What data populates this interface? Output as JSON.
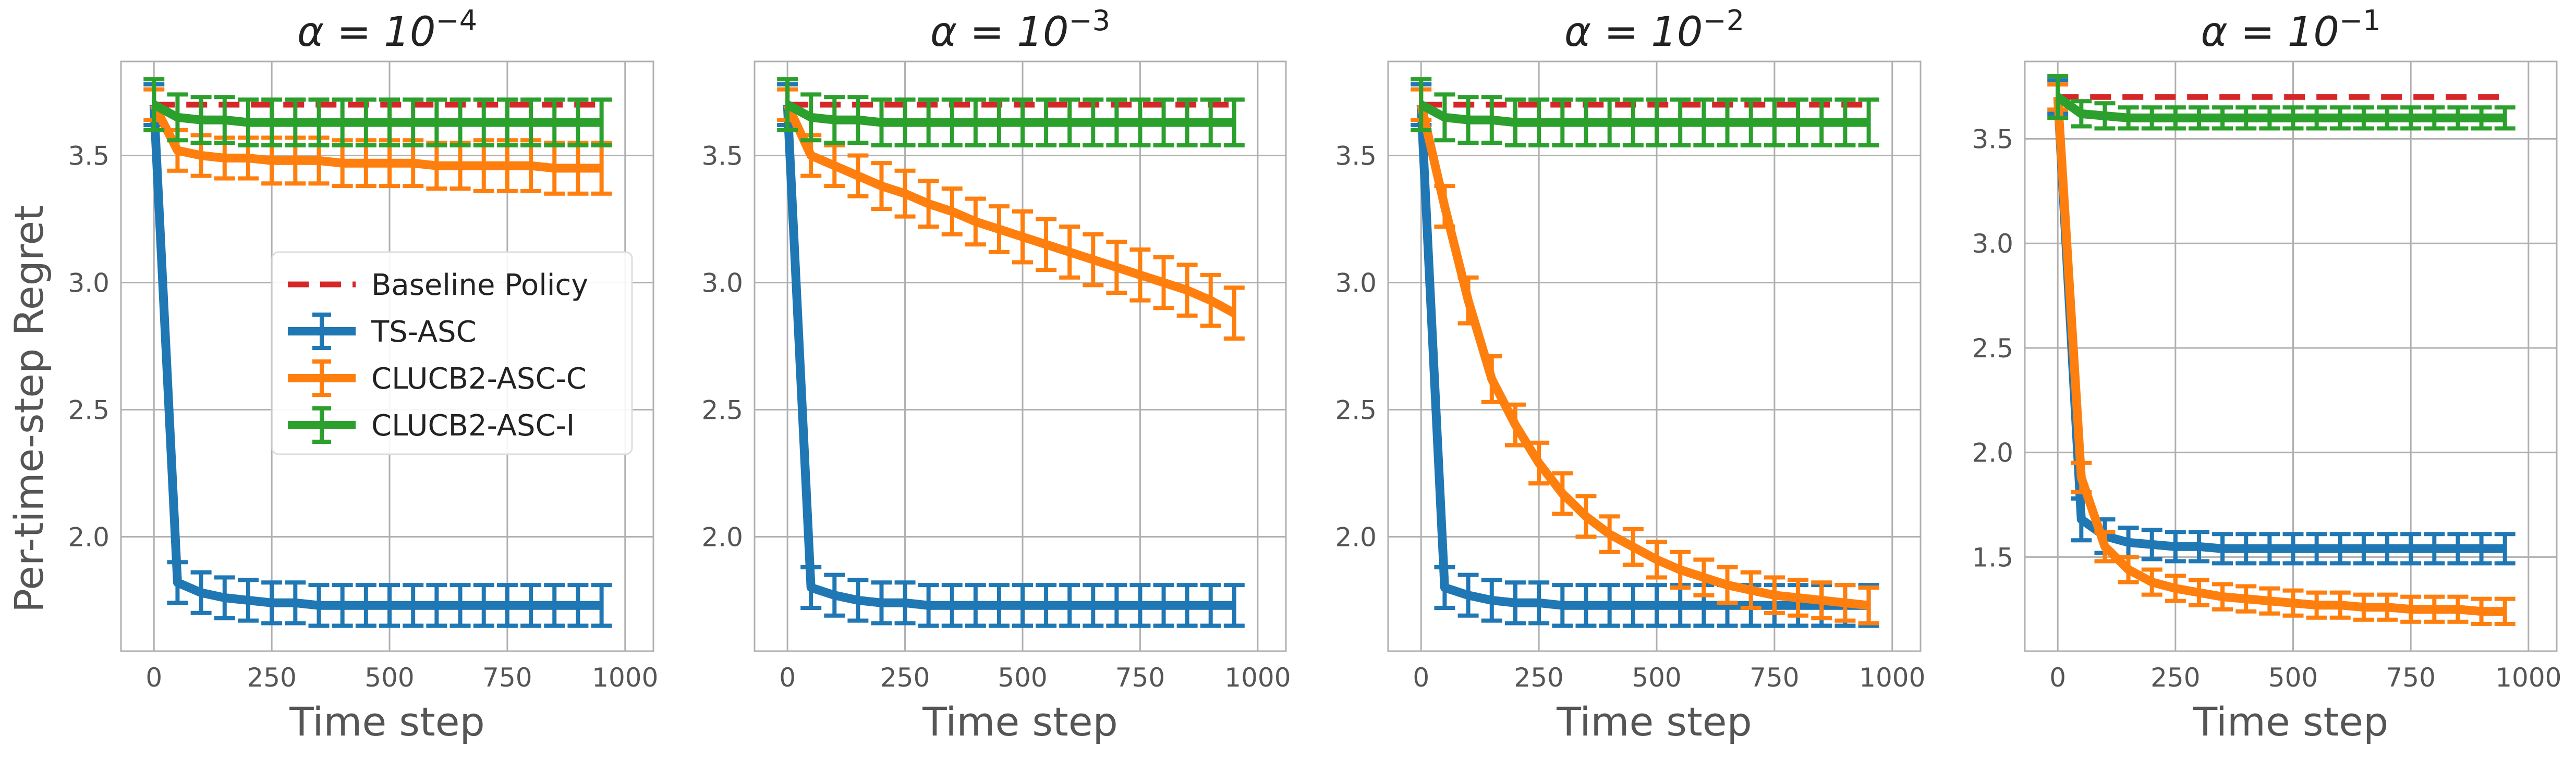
{
  "figure": {
    "ylabel": "Per-time-step Regret",
    "xlabel": "Time step"
  },
  "legend": {
    "location": "center-right of first panel",
    "entries": [
      {
        "name": "Baseline Policy",
        "color": "#d62728",
        "style": "dashed"
      },
      {
        "name": "TS-ASC",
        "color": "#1f77b4",
        "style": "errorbar"
      },
      {
        "name": "CLUCB2-ASC-C",
        "color": "#ff7f0e",
        "style": "errorbar"
      },
      {
        "name": "CLUCB2-ASC-I",
        "color": "#2ca02c",
        "style": "errorbar"
      }
    ]
  },
  "chart_data": [
    {
      "type": "line",
      "title": "α = 10",
      "title_exp": "−4",
      "xlabel": "Time step",
      "ylabel": "Per-time-step Regret",
      "xlim": [
        -70,
        1060
      ],
      "ylim": [
        1.55,
        3.87
      ],
      "xticks": [
        0,
        250,
        500,
        750,
        1000
      ],
      "xtick_labels": [
        "0",
        "250",
        "500",
        "750",
        "1000"
      ],
      "yticks": [
        2.0,
        2.5,
        3.0,
        3.5
      ],
      "ytick_labels": [
        "2.0",
        "2.5",
        "3.0",
        "3.5"
      ],
      "grid": true,
      "baseline": {
        "name": "Baseline Policy",
        "value": 3.7,
        "x": [
          0,
          960
        ]
      },
      "x": [
        0,
        50,
        100,
        150,
        200,
        250,
        300,
        350,
        400,
        450,
        500,
        550,
        600,
        650,
        700,
        750,
        800,
        850,
        900,
        950
      ],
      "series": [
        {
          "name": "TS-ASC",
          "color": "#1f77b4",
          "values": [
            3.7,
            1.82,
            1.78,
            1.76,
            1.75,
            1.74,
            1.74,
            1.73,
            1.73,
            1.73,
            1.73,
            1.73,
            1.73,
            1.73,
            1.73,
            1.73,
            1.73,
            1.73,
            1.73,
            1.73
          ],
          "err": [
            0.08,
            0.08,
            0.08,
            0.08,
            0.08,
            0.08,
            0.08,
            0.08,
            0.08,
            0.08,
            0.08,
            0.08,
            0.08,
            0.08,
            0.08,
            0.08,
            0.08,
            0.08,
            0.08,
            0.08
          ]
        },
        {
          "name": "CLUCB2-ASC-C",
          "color": "#ff7f0e",
          "values": [
            3.7,
            3.52,
            3.5,
            3.49,
            3.49,
            3.48,
            3.48,
            3.48,
            3.47,
            3.47,
            3.47,
            3.47,
            3.46,
            3.46,
            3.46,
            3.46,
            3.46,
            3.45,
            3.45,
            3.45
          ],
          "err": [
            0.06,
            0.08,
            0.08,
            0.08,
            0.08,
            0.09,
            0.09,
            0.09,
            0.09,
            0.09,
            0.09,
            0.09,
            0.09,
            0.09,
            0.1,
            0.1,
            0.1,
            0.1,
            0.1,
            0.1
          ]
        },
        {
          "name": "CLUCB2-ASC-I",
          "color": "#2ca02c",
          "values": [
            3.7,
            3.65,
            3.64,
            3.64,
            3.63,
            3.63,
            3.63,
            3.63,
            3.63,
            3.63,
            3.63,
            3.63,
            3.63,
            3.63,
            3.63,
            3.63,
            3.63,
            3.63,
            3.63,
            3.63
          ],
          "err": [
            0.1,
            0.09,
            0.09,
            0.09,
            0.09,
            0.09,
            0.09,
            0.09,
            0.09,
            0.09,
            0.09,
            0.09,
            0.09,
            0.09,
            0.09,
            0.09,
            0.09,
            0.09,
            0.09,
            0.09
          ]
        }
      ]
    },
    {
      "type": "line",
      "title": "α = 10",
      "title_exp": "−3",
      "xlabel": "Time step",
      "ylabel": "",
      "xlim": [
        -70,
        1060
      ],
      "ylim": [
        1.55,
        3.87
      ],
      "xticks": [
        0,
        250,
        500,
        750,
        1000
      ],
      "xtick_labels": [
        "0",
        "250",
        "500",
        "750",
        "1000"
      ],
      "yticks": [
        2.0,
        2.5,
        3.0,
        3.5
      ],
      "ytick_labels": [
        "2.0",
        "2.5",
        "3.0",
        "3.5"
      ],
      "grid": true,
      "baseline": {
        "name": "Baseline Policy",
        "value": 3.7,
        "x": [
          0,
          960
        ]
      },
      "x": [
        0,
        50,
        100,
        150,
        200,
        250,
        300,
        350,
        400,
        450,
        500,
        550,
        600,
        650,
        700,
        750,
        800,
        850,
        900,
        950
      ],
      "series": [
        {
          "name": "TS-ASC",
          "color": "#1f77b4",
          "values": [
            3.7,
            1.8,
            1.77,
            1.75,
            1.74,
            1.74,
            1.73,
            1.73,
            1.73,
            1.73,
            1.73,
            1.73,
            1.73,
            1.73,
            1.73,
            1.73,
            1.73,
            1.73,
            1.73,
            1.73
          ],
          "err": [
            0.08,
            0.08,
            0.08,
            0.08,
            0.08,
            0.08,
            0.08,
            0.08,
            0.08,
            0.08,
            0.08,
            0.08,
            0.08,
            0.08,
            0.08,
            0.08,
            0.08,
            0.08,
            0.08,
            0.08
          ]
        },
        {
          "name": "CLUCB2-ASC-C",
          "color": "#ff7f0e",
          "values": [
            3.7,
            3.5,
            3.46,
            3.42,
            3.38,
            3.35,
            3.31,
            3.28,
            3.24,
            3.21,
            3.18,
            3.15,
            3.12,
            3.09,
            3.06,
            3.03,
            3.0,
            2.97,
            2.93,
            2.88
          ],
          "err": [
            0.06,
            0.08,
            0.08,
            0.08,
            0.09,
            0.09,
            0.09,
            0.09,
            0.09,
            0.09,
            0.1,
            0.1,
            0.1,
            0.1,
            0.1,
            0.1,
            0.1,
            0.1,
            0.1,
            0.1
          ]
        },
        {
          "name": "CLUCB2-ASC-I",
          "color": "#2ca02c",
          "values": [
            3.7,
            3.65,
            3.64,
            3.64,
            3.63,
            3.63,
            3.63,
            3.63,
            3.63,
            3.63,
            3.63,
            3.63,
            3.63,
            3.63,
            3.63,
            3.63,
            3.63,
            3.63,
            3.63,
            3.63
          ],
          "err": [
            0.1,
            0.09,
            0.09,
            0.09,
            0.09,
            0.09,
            0.09,
            0.09,
            0.09,
            0.09,
            0.09,
            0.09,
            0.09,
            0.09,
            0.09,
            0.09,
            0.09,
            0.09,
            0.09,
            0.09
          ]
        }
      ]
    },
    {
      "type": "line",
      "title": "α = 10",
      "title_exp": "−2",
      "xlabel": "Time step",
      "ylabel": "",
      "xlim": [
        -70,
        1060
      ],
      "ylim": [
        1.55,
        3.87
      ],
      "xticks": [
        0,
        250,
        500,
        750,
        1000
      ],
      "xtick_labels": [
        "0",
        "250",
        "500",
        "750",
        "1000"
      ],
      "yticks": [
        2.0,
        2.5,
        3.0,
        3.5
      ],
      "ytick_labels": [
        "2.0",
        "2.5",
        "3.0",
        "3.5"
      ],
      "grid": true,
      "baseline": {
        "name": "Baseline Policy",
        "value": 3.7,
        "x": [
          0,
          960
        ]
      },
      "x": [
        0,
        50,
        100,
        150,
        200,
        250,
        300,
        350,
        400,
        450,
        500,
        550,
        600,
        650,
        700,
        750,
        800,
        850,
        900,
        950
      ],
      "series": [
        {
          "name": "TS-ASC",
          "color": "#1f77b4",
          "values": [
            3.7,
            1.8,
            1.77,
            1.75,
            1.74,
            1.74,
            1.73,
            1.73,
            1.73,
            1.73,
            1.73,
            1.73,
            1.73,
            1.73,
            1.73,
            1.73,
            1.73,
            1.73,
            1.73,
            1.73
          ],
          "err": [
            0.08,
            0.08,
            0.08,
            0.08,
            0.08,
            0.08,
            0.08,
            0.08,
            0.08,
            0.08,
            0.08,
            0.08,
            0.08,
            0.08,
            0.08,
            0.08,
            0.08,
            0.08,
            0.08,
            0.08
          ]
        },
        {
          "name": "CLUCB2-ASC-C",
          "color": "#ff7f0e",
          "values": [
            3.7,
            3.3,
            2.93,
            2.62,
            2.44,
            2.29,
            2.17,
            2.08,
            2.01,
            1.96,
            1.91,
            1.87,
            1.84,
            1.81,
            1.79,
            1.77,
            1.76,
            1.75,
            1.74,
            1.73
          ],
          "err": [
            0.06,
            0.08,
            0.09,
            0.09,
            0.08,
            0.08,
            0.08,
            0.08,
            0.07,
            0.07,
            0.07,
            0.07,
            0.07,
            0.07,
            0.07,
            0.07,
            0.07,
            0.07,
            0.07,
            0.07
          ]
        },
        {
          "name": "CLUCB2-ASC-I",
          "color": "#2ca02c",
          "values": [
            3.7,
            3.65,
            3.64,
            3.64,
            3.63,
            3.63,
            3.63,
            3.63,
            3.63,
            3.63,
            3.63,
            3.63,
            3.63,
            3.63,
            3.63,
            3.63,
            3.63,
            3.63,
            3.63,
            3.63
          ],
          "err": [
            0.1,
            0.09,
            0.09,
            0.09,
            0.09,
            0.09,
            0.09,
            0.09,
            0.09,
            0.09,
            0.09,
            0.09,
            0.09,
            0.09,
            0.09,
            0.09,
            0.09,
            0.09,
            0.09,
            0.09
          ]
        }
      ]
    },
    {
      "type": "line",
      "title": "α = 10",
      "title_exp": "−1",
      "xlabel": "Time step",
      "ylabel": "",
      "xlim": [
        -70,
        1060
      ],
      "ylim": [
        1.05,
        3.87
      ],
      "xticks": [
        0,
        250,
        500,
        750,
        1000
      ],
      "xtick_labels": [
        "0",
        "250",
        "500",
        "750",
        "1000"
      ],
      "yticks": [
        1.5,
        2.0,
        2.5,
        3.0,
        3.5
      ],
      "ytick_labels": [
        "1.5",
        "2.0",
        "2.5",
        "3.0",
        "3.5"
      ],
      "grid": true,
      "baseline": {
        "name": "Baseline Policy",
        "value": 3.7,
        "x": [
          0,
          960
        ]
      },
      "x": [
        0,
        50,
        100,
        150,
        200,
        250,
        300,
        350,
        400,
        450,
        500,
        550,
        600,
        650,
        700,
        750,
        800,
        850,
        900,
        950
      ],
      "series": [
        {
          "name": "TS-ASC",
          "color": "#1f77b4",
          "values": [
            3.7,
            1.68,
            1.6,
            1.57,
            1.56,
            1.55,
            1.55,
            1.54,
            1.54,
            1.54,
            1.54,
            1.54,
            1.54,
            1.54,
            1.54,
            1.54,
            1.54,
            1.54,
            1.54,
            1.54
          ],
          "err": [
            0.08,
            0.1,
            0.08,
            0.07,
            0.07,
            0.07,
            0.07,
            0.07,
            0.07,
            0.07,
            0.07,
            0.07,
            0.07,
            0.07,
            0.07,
            0.07,
            0.07,
            0.07,
            0.07,
            0.07
          ]
        },
        {
          "name": "CLUCB2-ASC-C",
          "color": "#ff7f0e",
          "values": [
            3.7,
            1.88,
            1.55,
            1.44,
            1.38,
            1.35,
            1.33,
            1.31,
            1.3,
            1.29,
            1.28,
            1.27,
            1.27,
            1.26,
            1.26,
            1.25,
            1.25,
            1.25,
            1.24,
            1.24
          ],
          "err": [
            0.06,
            0.07,
            0.07,
            0.06,
            0.06,
            0.06,
            0.06,
            0.06,
            0.06,
            0.06,
            0.06,
            0.06,
            0.06,
            0.06,
            0.06,
            0.06,
            0.06,
            0.06,
            0.06,
            0.06
          ]
        },
        {
          "name": "CLUCB2-ASC-I",
          "color": "#2ca02c",
          "values": [
            3.7,
            3.62,
            3.61,
            3.6,
            3.6,
            3.6,
            3.6,
            3.6,
            3.6,
            3.6,
            3.6,
            3.6,
            3.6,
            3.6,
            3.6,
            3.6,
            3.6,
            3.6,
            3.6,
            3.6
          ],
          "err": [
            0.1,
            0.06,
            0.06,
            0.05,
            0.05,
            0.05,
            0.05,
            0.05,
            0.05,
            0.05,
            0.05,
            0.05,
            0.05,
            0.05,
            0.05,
            0.05,
            0.05,
            0.05,
            0.05,
            0.05
          ]
        }
      ]
    }
  ]
}
